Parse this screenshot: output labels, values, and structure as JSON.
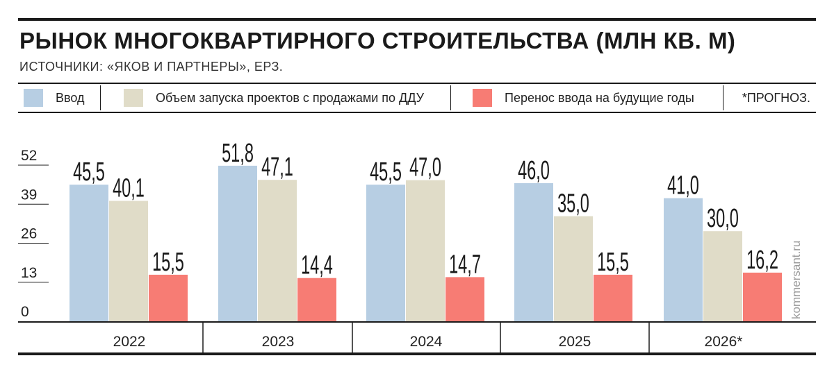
{
  "header": {
    "title": "РЫНОК МНОГОКВАРТИРНОГО СТРОИТЕЛЬСТВА (МЛН КВ. М)",
    "subtitle": "ИСТОЧНИКИ: «ЯКОВ И ПАРТНЕРЫ», ЕРЗ."
  },
  "legend": {
    "items": [
      {
        "label": "Ввод",
        "color": "#b7cee3"
      },
      {
        "label": "Объем запуска проектов с продажами по ДДУ",
        "color": "#e0dcc8"
      },
      {
        "label": "Перенос ввода на будущие годы",
        "color": "#f77c74"
      }
    ],
    "note": "*ПРОГНОЗ."
  },
  "watermark": "kommersant.ru",
  "chart_data": {
    "type": "bar",
    "title": "РЫНОК МНОГОКВАРТИРНОГО СТРОИТЕЛЬСТВА (МЛН КВ. М)",
    "subtitle": "ИСТОЧНИКИ: «ЯКОВ И ПАРТНЕРЫ», ЕРЗ.",
    "categories": [
      "2022",
      "2023",
      "2024",
      "2025",
      "2026*"
    ],
    "series": [
      {
        "name": "Ввод",
        "values": [
          45.5,
          51.8,
          45.5,
          46.0,
          41.0
        ],
        "labels": [
          "45,5",
          "51,8",
          "45,5",
          "46,0",
          "41,0"
        ],
        "color": "#b7cee3"
      },
      {
        "name": "Объем запуска проектов с продажами по ДДУ",
        "values": [
          40.1,
          47.1,
          47.0,
          35.0,
          30.0
        ],
        "labels": [
          "40,1",
          "47,1",
          "47,0",
          "35,0",
          "30,0"
        ],
        "color": "#e0dcc8"
      },
      {
        "name": "Перенос ввода на будущие годы",
        "values": [
          15.5,
          14.4,
          14.7,
          15.5,
          16.2
        ],
        "labels": [
          "15,5",
          "14,4",
          "14,7",
          "15,5",
          "16,2"
        ],
        "color": "#f77c74"
      }
    ],
    "yticks": [
      0,
      13,
      26,
      39,
      52
    ],
    "ylim": [
      0,
      52
    ],
    "grid": false,
    "legend_position": "top"
  }
}
